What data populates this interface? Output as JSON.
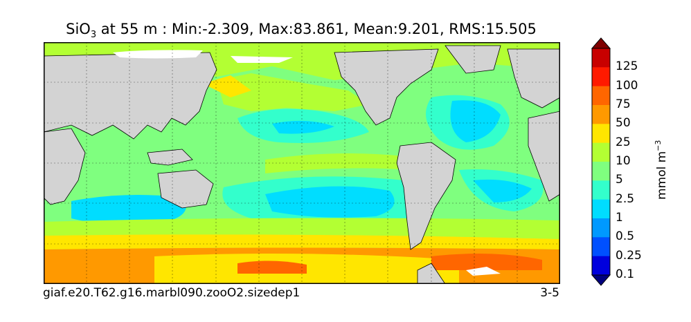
{
  "title": {
    "prefix": "SiO",
    "subscript": "3",
    "suffix": " at 55 m : Min:-2.309, Max:83.861, Mean:9.201, RMS:15.505"
  },
  "footer": {
    "case_name": "giaf.e20.T62.g16.marbl090.zooO2.sizedep1",
    "years": "3-5"
  },
  "colorbar": {
    "unit_base": "mmol m",
    "unit_exp": "−3",
    "tick_labels": [
      "125",
      "100",
      "75",
      "50",
      "25",
      "10",
      "5",
      "2.5",
      "1",
      "0.5",
      "0.25",
      "0.1"
    ],
    "colors": [
      "#7f0000",
      "#c80000",
      "#ff1a00",
      "#ff6600",
      "#ff9900",
      "#ffe600",
      "#b3ff33",
      "#7fff7f",
      "#33ffcc",
      "#00ddff",
      "#0099ff",
      "#0050ff",
      "#0000dd",
      "#00007f"
    ]
  },
  "map": {
    "land_color": "#d3d3d3",
    "no_data_color": "#ffffff"
  }
}
